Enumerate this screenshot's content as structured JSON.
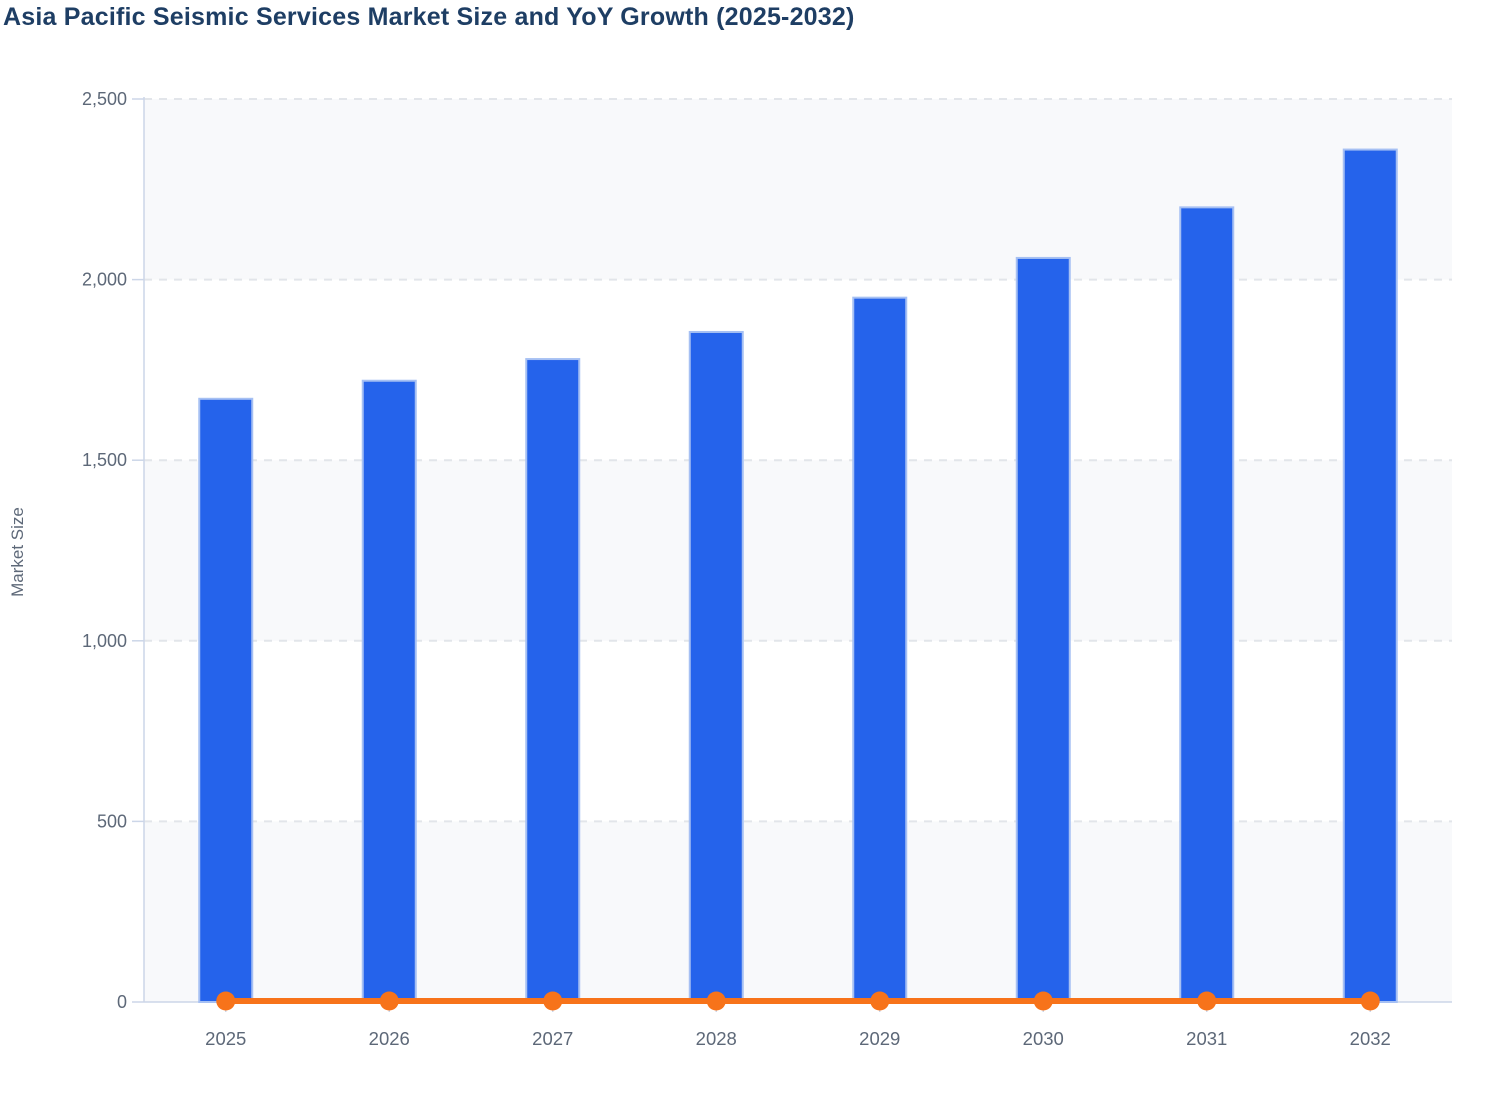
{
  "header": {
    "title": "Asia Pacific Seismic Services Market Size and YoY Growth (2025-2032)"
  },
  "chart_data": {
    "type": "bar",
    "subtype": "bar-and-line-combo",
    "title": "Asia Pacific Seismic Services Market Size and YoY Growth (2025-2032)",
    "ylabel": "Market Size",
    "xlabel": "",
    "categories": [
      "2025",
      "2026",
      "2027",
      "2028",
      "2029",
      "2030",
      "2031",
      "2032"
    ],
    "series": [
      {
        "name": "Market Size",
        "type": "bar",
        "values": [
          1670,
          1720,
          1780,
          1855,
          1950,
          2060,
          2200,
          2360
        ]
      },
      {
        "name": "YoY Growth",
        "type": "line",
        "values": [
          0,
          0,
          0,
          0,
          0,
          0,
          0,
          0
        ],
        "note": "Orange line renders flat on the 0 baseline with a round marker at every year; growth magnitudes are not legible at the Market Size axis scale."
      }
    ],
    "ylim": [
      0,
      2500
    ],
    "yticks": [
      0,
      500,
      1000,
      1500,
      2000,
      2500
    ],
    "ytick_labels": [
      "0",
      "500",
      "1,000",
      "1,500",
      "2,000",
      "2,500"
    ],
    "grid": {
      "horizontal": true,
      "style": "dashed"
    },
    "plot_bands": "alternating horizontal bands between gridline pairs (0-500, 1000-1500, 2000-2500 shaded)",
    "legend": "none",
    "colors": {
      "bar_fill": "#2563eb",
      "bar_stroke": "#a6c0f3",
      "line": "#f7731a",
      "title_text": "#1e3e64",
      "axis_text": "#5d6878",
      "gridline": "#e2e5ea",
      "axis_line": "#ccd6e8",
      "band_fill": "#f8f9fb",
      "background": "#ffffff"
    }
  }
}
